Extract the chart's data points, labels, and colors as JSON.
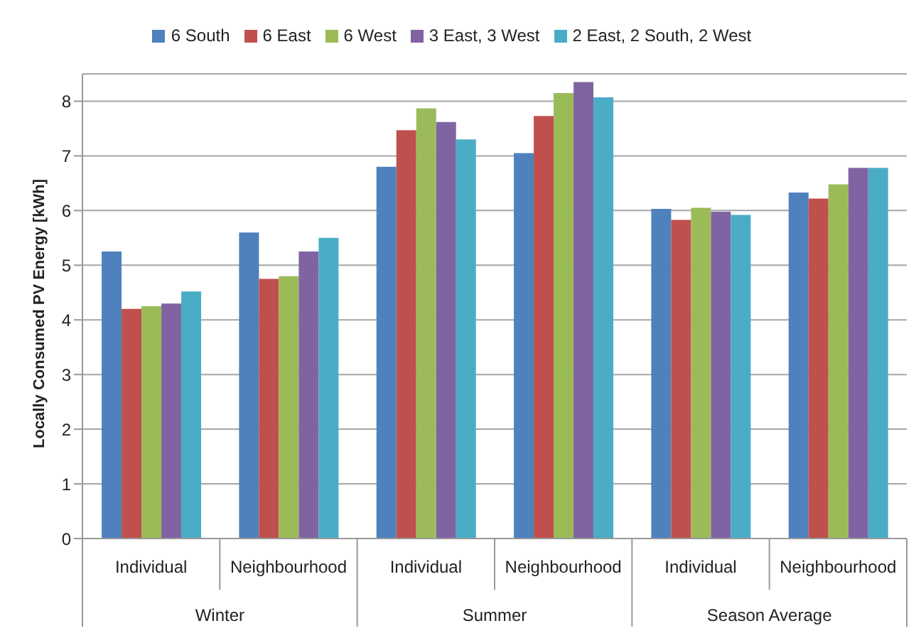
{
  "chart_data": {
    "type": "bar",
    "ylabel": "Locally Consumed PV Energy [kWh]",
    "categories": [
      "Individual",
      "Neighbourhood",
      "Individual",
      "Neighbourhood",
      "Individual",
      "Neighbourhood"
    ],
    "annotations": [
      "Winter",
      "Summer",
      "Season Average"
    ],
    "series": [
      {
        "name": "6 South",
        "color": "#4f81bd",
        "values": [
          5.25,
          5.6,
          6.8,
          7.05,
          6.03,
          6.33
        ]
      },
      {
        "name": "6 East",
        "color": "#c0504d",
        "values": [
          4.2,
          4.75,
          7.47,
          7.73,
          5.83,
          6.22
        ]
      },
      {
        "name": "6 West",
        "color": "#9bbb59",
        "values": [
          4.25,
          4.8,
          7.87,
          8.15,
          6.05,
          6.48
        ]
      },
      {
        "name": "3 East, 3 West",
        "color": "#8064a2",
        "values": [
          4.3,
          5.25,
          7.62,
          8.35,
          5.98,
          6.78
        ]
      },
      {
        "name": "2 East, 2 South, 2 West",
        "color": "#4bacc6",
        "values": [
          4.52,
          5.5,
          7.3,
          8.07,
          5.92,
          6.78
        ]
      }
    ],
    "ylim": [
      0,
      8.5
    ],
    "yticks": [
      0,
      1,
      2,
      3,
      4,
      5,
      6,
      7,
      8
    ],
    "grid": "y",
    "legend": "top"
  }
}
